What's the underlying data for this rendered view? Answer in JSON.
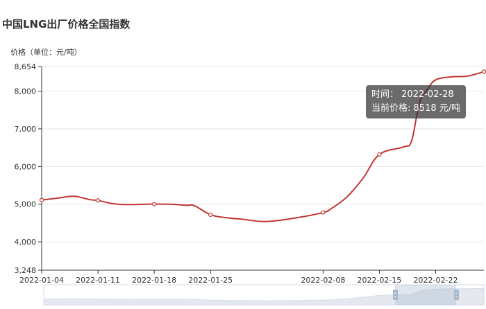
{
  "title": "中国LNG出厂价格全国指数",
  "tooltip": {
    "time_label": "时间：",
    "time_value": "2022-02-28",
    "price_label": "当前价格:",
    "price_value": "8518",
    "price_unit": "元/吨"
  },
  "colors": {
    "line": "#c23531",
    "axis": "#333333",
    "grid": "#e6e6e6"
  },
  "chart_data": {
    "type": "line",
    "ylabel": "价格（单位：元/吨）",
    "ylim": [
      3248,
      8654
    ],
    "yticks": [
      3248,
      4000,
      5000,
      6000,
      7000,
      8000,
      8654
    ],
    "yticks_text": [
      "3,248",
      "4,000",
      "5,000",
      "6,000",
      "7,000",
      "8,000",
      "8,654"
    ],
    "xlim": [
      "2022-01-04",
      "2022-02-28"
    ],
    "xticks": [
      "2022-01-04",
      "2022-01-11",
      "2022-01-18",
      "2022-01-25",
      "2022-02-08",
      "2022-02-15",
      "2022-02-22"
    ],
    "x": [
      "2022-01-04",
      "2022-01-06",
      "2022-01-08",
      "2022-01-10",
      "2022-01-11",
      "2022-01-13",
      "2022-01-15",
      "2022-01-17",
      "2022-01-18",
      "2022-01-20",
      "2022-01-22",
      "2022-01-23",
      "2022-01-25",
      "2022-01-27",
      "2022-01-29",
      "2022-02-01",
      "2022-02-05",
      "2022-02-08",
      "2022-02-09",
      "2022-02-11",
      "2022-02-13",
      "2022-02-15",
      "2022-02-18",
      "2022-02-19",
      "2022-02-20",
      "2022-02-21",
      "2022-02-22",
      "2022-02-24",
      "2022-02-26",
      "2022-02-28"
    ],
    "values": [
      5110,
      5160,
      5210,
      5120,
      5100,
      5010,
      4990,
      5000,
      5000,
      5000,
      4970,
      4960,
      4720,
      4640,
      4600,
      4540,
      4650,
      4780,
      4880,
      5200,
      5700,
      6320,
      6520,
      6680,
      7700,
      8050,
      8300,
      8380,
      8400,
      8518
    ],
    "markers": [
      "2022-01-04",
      "2022-01-11",
      "2022-01-18",
      "2022-01-25",
      "2022-02-08",
      "2022-02-15",
      "2022-02-28"
    ]
  }
}
